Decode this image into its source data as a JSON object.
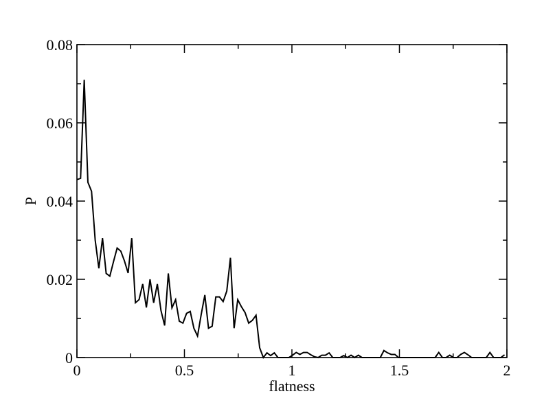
{
  "chart_data": {
    "type": "line",
    "title": "",
    "xlabel": "flatness",
    "ylabel": "P",
    "xlim": [
      0,
      2
    ],
    "ylim": [
      0,
      0.08
    ],
    "xticks": [
      {
        "value": 0,
        "label": "0"
      },
      {
        "value": 0.5,
        "label": "0.5"
      },
      {
        "value": 1,
        "label": "1"
      },
      {
        "value": 1.5,
        "label": "1.5"
      },
      {
        "value": 2,
        "label": "2"
      }
    ],
    "yticks": [
      {
        "value": 0,
        "label": "0"
      },
      {
        "value": 0.02,
        "label": "0.02"
      },
      {
        "value": 0.04,
        "label": "0.04"
      },
      {
        "value": 0.06,
        "label": "0.06"
      },
      {
        "value": 0.08,
        "label": "0.08"
      }
    ],
    "grid": false,
    "legend": "none",
    "line_color": "#000000",
    "series": [
      {
        "x": [
          0.0,
          0.017,
          0.034,
          0.051,
          0.068,
          0.085,
          0.102,
          0.119,
          0.136,
          0.153,
          0.17,
          0.187,
          0.204,
          0.221,
          0.238,
          0.255,
          0.272,
          0.289,
          0.306,
          0.323,
          0.34,
          0.357,
          0.374,
          0.391,
          0.408,
          0.425,
          0.442,
          0.459,
          0.476,
          0.493,
          0.51,
          0.527,
          0.544,
          0.561,
          0.578,
          0.595,
          0.612,
          0.629,
          0.646,
          0.663,
          0.68,
          0.697,
          0.714,
          0.731,
          0.748,
          0.765,
          0.782,
          0.799,
          0.816,
          0.833,
          0.85,
          0.867,
          0.884,
          0.901,
          0.918,
          0.935,
          0.952,
          0.969,
          0.986,
          1.003,
          1.02,
          1.037,
          1.054,
          1.071,
          1.088,
          1.105,
          1.122,
          1.139,
          1.156,
          1.173,
          1.19,
          1.207,
          1.224,
          1.241,
          1.258,
          1.275,
          1.292,
          1.309,
          1.326,
          1.343,
          1.36,
          1.377,
          1.394,
          1.411,
          1.428,
          1.445,
          1.462,
          1.479,
          1.496,
          1.513,
          1.53,
          1.547,
          1.564,
          1.581,
          1.598,
          1.615,
          1.632,
          1.649,
          1.666,
          1.683,
          1.7,
          1.717,
          1.734,
          1.751,
          1.768,
          1.785,
          1.802,
          1.819,
          1.836,
          1.853,
          1.87,
          1.887,
          1.904,
          1.921,
          1.938,
          1.955,
          1.972,
          1.989
        ],
        "y": [
          0.0455,
          0.0458,
          0.071,
          0.0448,
          0.0425,
          0.03,
          0.0228,
          0.0305,
          0.0215,
          0.0208,
          0.0245,
          0.028,
          0.0272,
          0.0247,
          0.0216,
          0.0305,
          0.014,
          0.0148,
          0.0188,
          0.0128,
          0.02,
          0.014,
          0.0188,
          0.012,
          0.0082,
          0.0215,
          0.0127,
          0.0148,
          0.0093,
          0.0088,
          0.0113,
          0.0118,
          0.0075,
          0.0055,
          0.011,
          0.016,
          0.0075,
          0.008,
          0.0155,
          0.0155,
          0.0143,
          0.017,
          0.0255,
          0.0075,
          0.0148,
          0.013,
          0.0115,
          0.0088,
          0.0095,
          0.0108,
          0.0025,
          0.0,
          0.0012,
          0.0005,
          0.0012,
          0.0,
          0.0,
          0.0,
          0.0,
          0.0006,
          0.0013,
          0.0008,
          0.0013,
          0.0013,
          0.0007,
          0.0002,
          0.0,
          0.0006,
          0.0006,
          0.0012,
          0.0,
          0.0,
          0.0,
          0.0005,
          0.0,
          0.0006,
          0.0,
          0.0006,
          0.0,
          0.0,
          0.0,
          0.0,
          0.0,
          0.0,
          0.0018,
          0.0012,
          0.0008,
          0.0008,
          0.0,
          0.0,
          0.0,
          0.0,
          0.0,
          0.0,
          0.0,
          0.0,
          0.0,
          0.0,
          0.0,
          0.0013,
          0.0,
          0.0,
          0.0006,
          0.0,
          0.0,
          0.0008,
          0.0013,
          0.0007,
          0.0,
          0.0,
          0.0,
          0.0,
          0.0,
          0.0013,
          0.0,
          0.0,
          0.0,
          0.0007
        ]
      }
    ]
  }
}
